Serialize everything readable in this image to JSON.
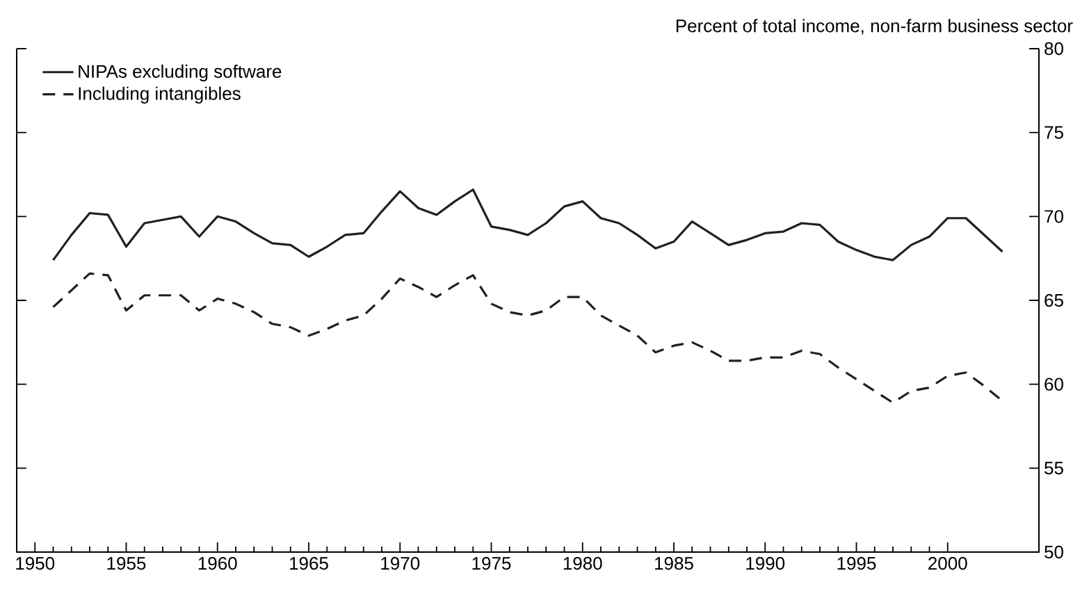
{
  "chart_data": {
    "type": "line",
    "ylabel": "Percent of total income, non-farm business sector",
    "x": [
      1951,
      1952,
      1953,
      1954,
      1955,
      1956,
      1957,
      1958,
      1959,
      1960,
      1961,
      1962,
      1963,
      1964,
      1965,
      1966,
      1967,
      1968,
      1969,
      1970,
      1971,
      1972,
      1973,
      1974,
      1975,
      1976,
      1977,
      1978,
      1979,
      1980,
      1981,
      1982,
      1983,
      1984,
      1985,
      1986,
      1987,
      1988,
      1989,
      1990,
      1991,
      1992,
      1993,
      1994,
      1995,
      1996,
      1997,
      1998,
      1999,
      2000,
      2001,
      2002,
      2003
    ],
    "series": [
      {
        "name": "NIPAs excluding software",
        "color": "#231f20",
        "line_style": "solid",
        "values": [
          67.4,
          68.9,
          70.2,
          70.1,
          68.2,
          69.6,
          69.8,
          70.0,
          68.8,
          70.0,
          69.7,
          69.0,
          68.4,
          68.3,
          67.6,
          68.2,
          68.9,
          69.0,
          70.3,
          71.5,
          70.5,
          70.1,
          70.9,
          71.6,
          69.4,
          69.2,
          68.9,
          69.6,
          70.6,
          70.9,
          69.9,
          69.6,
          68.9,
          68.1,
          68.5,
          69.7,
          69.0,
          68.3,
          68.6,
          69.0,
          69.1,
          69.6,
          69.5,
          68.5,
          68.0,
          67.6,
          67.4,
          68.3,
          68.8,
          69.9,
          69.9,
          68.9,
          67.9
        ]
      },
      {
        "name": "Including intangibles",
        "color": "#231f20",
        "line_style": "dashed",
        "values": [
          64.6,
          65.6,
          66.6,
          66.5,
          64.4,
          65.3,
          65.3,
          65.3,
          64.4,
          65.1,
          64.8,
          64.3,
          63.6,
          63.4,
          62.9,
          63.3,
          63.8,
          64.1,
          65.1,
          66.3,
          65.8,
          65.2,
          65.9,
          66.5,
          64.8,
          64.3,
          64.1,
          64.4,
          65.2,
          65.2,
          64.1,
          63.5,
          62.9,
          61.9,
          62.3,
          62.5,
          62.0,
          61.4,
          61.4,
          61.6,
          61.6,
          62.0,
          61.8,
          61.0,
          60.3,
          59.6,
          58.9,
          59.6,
          59.8,
          60.5,
          60.7,
          59.9,
          59.0
        ]
      }
    ],
    "xlim": [
      1949,
      2005
    ],
    "xticks": [
      1950,
      1955,
      1960,
      1965,
      1970,
      1975,
      1980,
      1985,
      1990,
      1995,
      2000
    ],
    "ylim": [
      50,
      80
    ],
    "yticks": [
      50,
      55,
      60,
      65,
      70,
      75,
      80
    ],
    "grid": false,
    "legend": "top left",
    "marker": "none"
  }
}
